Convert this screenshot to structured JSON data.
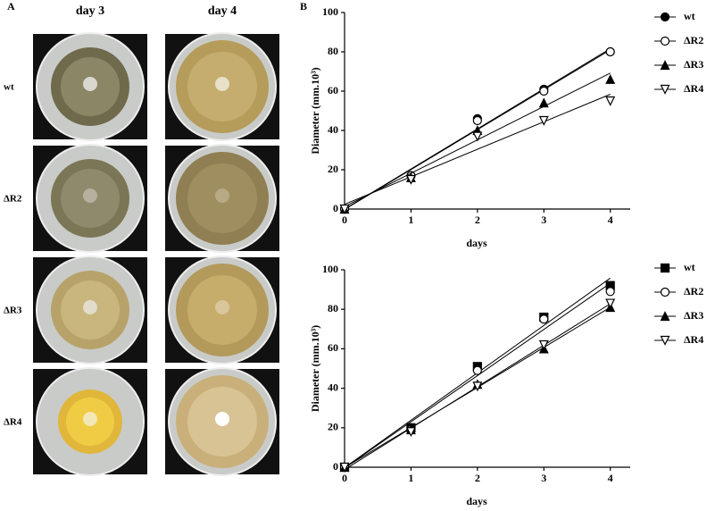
{
  "panel_a": {
    "label": "A",
    "columns": [
      "day 3",
      "day 4"
    ],
    "rows": [
      "wt",
      "ΔR2",
      "ΔR3",
      "ΔR4"
    ]
  },
  "panel_b_label": "B",
  "chart_data": [
    {
      "type": "scatter",
      "trend_line": true,
      "x_label": "days",
      "y_label": "Diameter (mm.10³)",
      "x": [
        0,
        1,
        2,
        3,
        4
      ],
      "xlim": [
        0,
        4.3
      ],
      "xticks": [
        0,
        1,
        2,
        3,
        4
      ],
      "ylim": [
        0,
        100
      ],
      "yticks": [
        0,
        20,
        40,
        60,
        80,
        100
      ],
      "series": [
        {
          "name": "wt",
          "marker": "circle-filled",
          "color": "#000000",
          "values": [
            0,
            17,
            46,
            61,
            80
          ]
        },
        {
          "name": "ΔR2",
          "marker": "circle-open",
          "color": "#000000",
          "values": [
            0,
            17,
            45,
            60,
            80
          ]
        },
        {
          "name": "ΔR3",
          "marker": "triangle-filled",
          "color": "#000000",
          "values": [
            0,
            16,
            40,
            54,
            66
          ]
        },
        {
          "name": "ΔR4",
          "marker": "triangle-down-open",
          "color": "#000000",
          "values": [
            0,
            15,
            37,
            45,
            55
          ]
        }
      ]
    },
    {
      "type": "scatter",
      "trend_line": true,
      "x_label": "days",
      "y_label": "Diameter (mm.10³)",
      "x": [
        0,
        1,
        2,
        3,
        4
      ],
      "xlim": [
        0,
        4.3
      ],
      "xticks": [
        0,
        1,
        2,
        3,
        4
      ],
      "ylim": [
        0,
        100
      ],
      "yticks": [
        0,
        20,
        40,
        60,
        80,
        100
      ],
      "series": [
        {
          "name": "wt",
          "marker": "square-filled",
          "color": "#000000",
          "values": [
            0,
            20,
            51,
            76,
            92
          ]
        },
        {
          "name": "ΔR2",
          "marker": "circle-open",
          "color": "#000000",
          "values": [
            0,
            19,
            49,
            75,
            89
          ]
        },
        {
          "name": "ΔR3",
          "marker": "triangle-filled",
          "color": "#000000",
          "values": [
            0,
            19,
            42,
            60,
            81
          ]
        },
        {
          "name": "ΔR4",
          "marker": "triangle-down-open",
          "color": "#000000",
          "values": [
            0,
            18,
            41,
            62,
            83
          ]
        }
      ]
    }
  ]
}
